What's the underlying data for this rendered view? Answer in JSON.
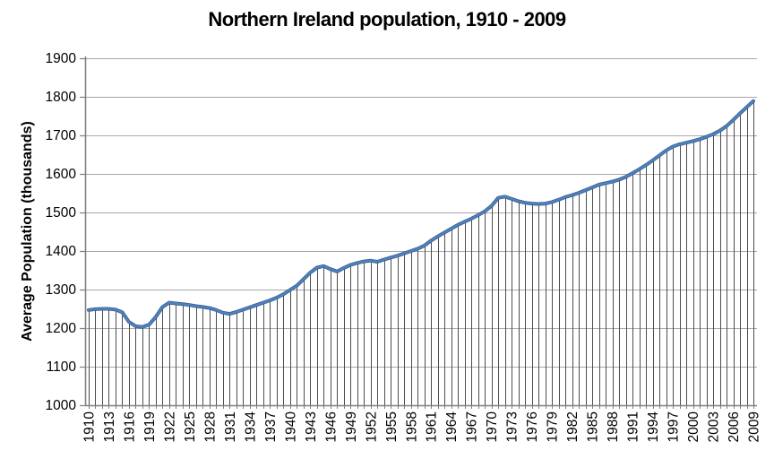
{
  "chart": {
    "title": "Northern Ireland population, 1910 - 2009",
    "ylabel": "Average Population (thousands)"
  },
  "chart_data": {
    "type": "line",
    "title": "Northern Ireland population, 1910 - 2009",
    "xlabel": "",
    "ylabel": "Average Population (thousands)",
    "x_start": 1910,
    "x_end": 2009,
    "ylim": [
      1000,
      1900
    ],
    "y_ticks": [
      1000,
      1100,
      1200,
      1300,
      1400,
      1500,
      1600,
      1700,
      1800,
      1900
    ],
    "x_tick_labels": [
      "1910",
      "1913",
      "1916",
      "1919",
      "1922",
      "1925",
      "1928",
      "1931",
      "1934",
      "1937",
      "1940",
      "1943",
      "1946",
      "1949",
      "1952",
      "1955",
      "1958",
      "1961",
      "1964",
      "1967",
      "1970",
      "1973",
      "1976",
      "1979",
      "1982",
      "1985",
      "1988",
      "1991",
      "1994",
      "1997",
      "2000",
      "2003",
      "2006",
      "2009"
    ],
    "grid": "horizontal",
    "drop_lines": true,
    "legend": "none",
    "series": [
      {
        "name": "Average population (thousands)",
        "values": [
          1247,
          1249,
          1250,
          1250,
          1248,
          1241,
          1216,
          1205,
          1203,
          1209,
          1229,
          1255,
          1266,
          1264,
          1262,
          1260,
          1257,
          1255,
          1252,
          1247,
          1240,
          1237,
          1242,
          1248,
          1254,
          1260,
          1266,
          1272,
          1279,
          1288,
          1299,
          1310,
          1327,
          1344,
          1357,
          1361,
          1353,
          1347,
          1356,
          1364,
          1369,
          1373,
          1375,
          1372,
          1378,
          1383,
          1388,
          1394,
          1400,
          1406,
          1414,
          1427,
          1438,
          1448,
          1458,
          1468,
          1476,
          1484,
          1493,
          1503,
          1517,
          1538,
          1541,
          1535,
          1529,
          1525,
          1523,
          1522,
          1523,
          1527,
          1533,
          1540,
          1545,
          1551,
          1558,
          1565,
          1572,
          1576,
          1580,
          1585,
          1592,
          1602,
          1612,
          1623,
          1635,
          1648,
          1661,
          1671,
          1677,
          1681,
          1685,
          1690,
          1696,
          1703,
          1712,
          1724,
          1740,
          1757,
          1773,
          1789
        ]
      }
    ],
    "colors": {
      "line": "#4f81bd",
      "line_edge": "#38608f",
      "gridline": "#a6a6a6",
      "axis": "#808080",
      "drop_line": "#4d4d4d",
      "text": "#000000"
    }
  }
}
